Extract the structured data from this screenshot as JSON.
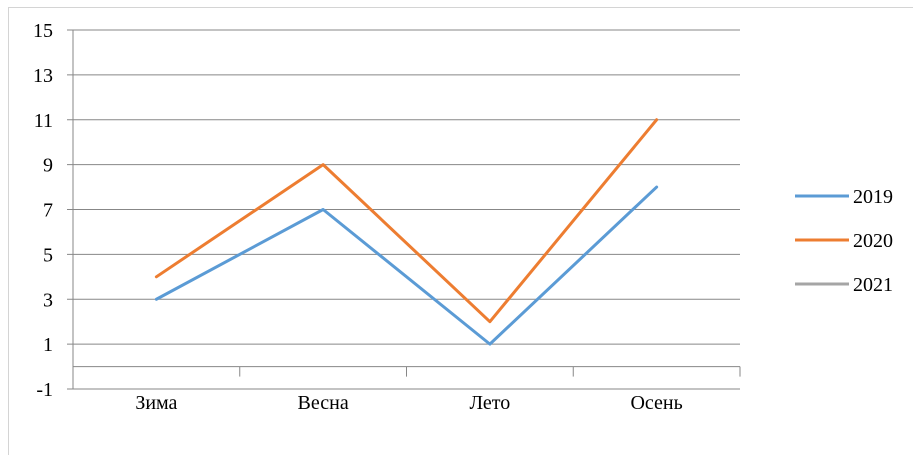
{
  "chart_data": {
    "type": "line",
    "categories": [
      "Зима",
      "Весна",
      "Лето",
      "Осень"
    ],
    "series": [
      {
        "name": "2019",
        "values": [
          3,
          7,
          1,
          8
        ],
        "color": "#5b9bd5"
      },
      {
        "name": "2020",
        "values": [
          4,
          9,
          2,
          11
        ],
        "color": "#ed7d31"
      },
      {
        "name": "2021",
        "values": [
          null,
          null,
          null,
          null
        ],
        "color": "#a5a5a5"
      }
    ],
    "ylim": [
      -1,
      15
    ],
    "yticks": [
      -1,
      1,
      3,
      5,
      7,
      9,
      11,
      13,
      15
    ],
    "grid": true,
    "legend_position": "right"
  }
}
